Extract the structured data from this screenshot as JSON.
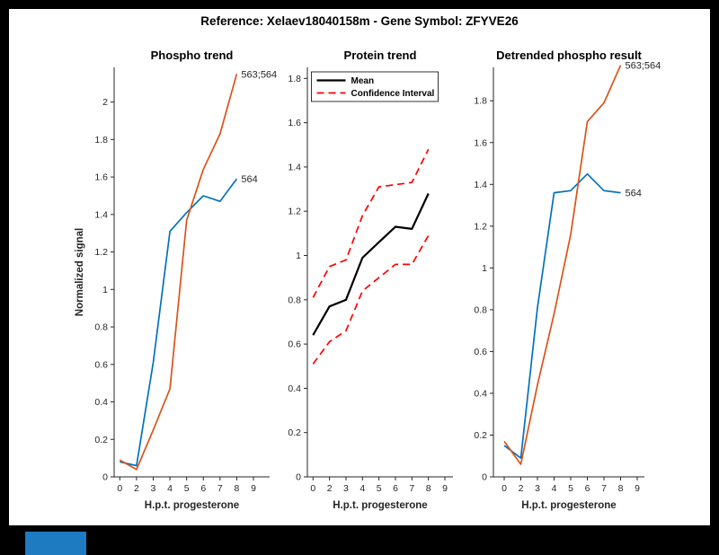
{
  "figure_title": "Reference:  Xelaev18040158m - Gene Symbol:  ZFYVE26",
  "canvas": {
    "bg": "#ffffff",
    "frame_bg": "#000000"
  },
  "taskbar_item": {
    "color": "#1e7ac1"
  },
  "axis_style": {
    "text_color": "#262626",
    "axis_color": "#262626"
  },
  "x_axis_label": "H.p.t. progesterone",
  "chart_data": [
    {
      "type": "line",
      "title": "Phospho trend",
      "xlabel": "H.p.t. progesterone",
      "ylabel": "Normalized signal",
      "x_tick_labels": [
        "0",
        "2",
        "3",
        "4",
        "5",
        "6",
        "7",
        "8",
        "9"
      ],
      "x_categories_with_data": [
        "0",
        "2",
        "3",
        "4",
        "5",
        "6",
        "7",
        "8"
      ],
      "ylim": [
        0,
        2.185
      ],
      "y_ticks": [
        0,
        0.2,
        0.4,
        0.6,
        0.8,
        1,
        1.2,
        1.4,
        1.6,
        1.8,
        2
      ],
      "grid": false,
      "legend": null,
      "series": [
        {
          "name": "564",
          "color": "#0072BD",
          "style": "solid",
          "width": 1.7,
          "end_label": "564",
          "values": [
            0.08,
            0.06,
            0.61,
            1.31,
            1.41,
            1.5,
            1.47,
            1.59
          ]
        },
        {
          "name": "563;564",
          "color": "#D95319",
          "style": "solid",
          "width": 1.7,
          "end_label": "563;564",
          "values": [
            0.09,
            0.04,
            0.25,
            0.47,
            1.37,
            1.64,
            1.83,
            2.15
          ]
        }
      ]
    },
    {
      "type": "line",
      "title": "Protein trend",
      "xlabel": "H.p.t. progesterone",
      "ylabel": "",
      "x_tick_labels": [
        "0",
        "2",
        "3",
        "4",
        "5",
        "6",
        "7",
        "8",
        "9"
      ],
      "x_categories_with_data": [
        "0",
        "2",
        "3",
        "4",
        "5",
        "6",
        "7",
        "8"
      ],
      "ylim": [
        0,
        1.85
      ],
      "y_ticks": [
        0,
        0.2,
        0.4,
        0.6,
        0.8,
        1,
        1.2,
        1.4,
        1.6,
        1.8
      ],
      "grid": false,
      "legend": {
        "position": "northwest",
        "entries": [
          {
            "label": "Mean",
            "color": "#000000",
            "style": "solid"
          },
          {
            "label": "Confidence Interval",
            "color": "#FF0000",
            "style": "dashed"
          }
        ]
      },
      "series": [
        {
          "name": "Mean",
          "color": "#000000",
          "style": "solid",
          "width": 2.2,
          "end_label": null,
          "values": [
            0.64,
            0.77,
            0.8,
            0.99,
            1.06,
            1.13,
            1.12,
            1.28
          ]
        },
        {
          "name": "Confidence Interval upper",
          "color": "#FF0000",
          "style": "dashed",
          "width": 1.7,
          "end_label": null,
          "values": [
            0.81,
            0.95,
            0.98,
            1.18,
            1.31,
            1.32,
            1.33,
            1.48
          ]
        },
        {
          "name": "Confidence Interval lower",
          "color": "#FF0000",
          "style": "dashed",
          "width": 1.7,
          "end_label": null,
          "values": [
            0.51,
            0.61,
            0.66,
            0.84,
            0.9,
            0.96,
            0.96,
            1.09
          ]
        }
      ]
    },
    {
      "type": "line",
      "title": "Detrended phospho result",
      "xlabel": "H.p.t. progesterone",
      "ylabel": "",
      "x_tick_labels": [
        "0",
        "2",
        "3",
        "4",
        "5",
        "6",
        "7",
        "8",
        "9"
      ],
      "x_categories_with_data": [
        "0",
        "2",
        "3",
        "4",
        "5",
        "6",
        "7",
        "8"
      ],
      "ylim": [
        0,
        1.96
      ],
      "y_ticks": [
        0,
        0.2,
        0.4,
        0.6,
        0.8,
        1,
        1.2,
        1.4,
        1.6,
        1.8
      ],
      "grid": false,
      "legend": null,
      "series": [
        {
          "name": "564",
          "color": "#0072BD",
          "style": "solid",
          "width": 1.7,
          "end_label": "564",
          "values": [
            0.15,
            0.09,
            0.81,
            1.36,
            1.37,
            1.45,
            1.37,
            1.36
          ]
        },
        {
          "name": "563;564",
          "color": "#D95319",
          "style": "solid",
          "width": 1.7,
          "end_label": "563;564",
          "values": [
            0.17,
            0.06,
            0.44,
            0.78,
            1.16,
            1.7,
            1.79,
            1.97
          ]
        }
      ]
    }
  ]
}
